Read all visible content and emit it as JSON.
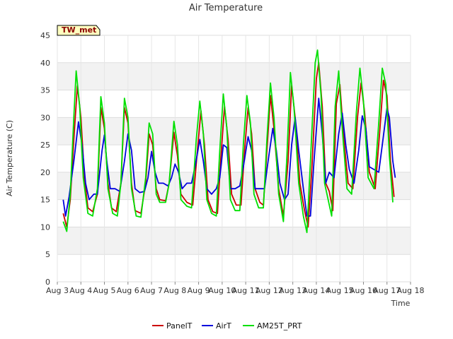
{
  "chart_data": {
    "type": "line",
    "title": "Air Temperature",
    "xlabel": "Time",
    "ylabel": "Air Temperature (C)",
    "badge": "TW_met",
    "ylim": [
      0,
      45
    ],
    "yticks": [
      0,
      5,
      10,
      15,
      20,
      25,
      30,
      35,
      40,
      45
    ],
    "xlim": [
      3,
      18
    ],
    "xtick_labels": [
      "Aug 3",
      "Aug 4",
      "Aug 5",
      "Aug 6",
      "Aug 7",
      "Aug 8",
      "Aug 9",
      "Aug 10",
      "Aug 11",
      "Aug 12",
      "Aug 13",
      "Aug 14",
      "Aug 15",
      "Aug 16",
      "Aug 17",
      "Aug 18"
    ],
    "grid": true,
    "legend_position": "bottom",
    "series": [
      {
        "name": "PanelT",
        "color": "#cc0000",
        "points": [
          [
            3.25,
            12.5
          ],
          [
            3.4,
            10.0
          ],
          [
            3.55,
            15.0
          ],
          [
            3.7,
            26.0
          ],
          [
            3.85,
            35.8
          ],
          [
            4.0,
            30.0
          ],
          [
            4.15,
            19.0
          ],
          [
            4.3,
            13.5
          ],
          [
            4.5,
            12.8
          ],
          [
            4.7,
            16.0
          ],
          [
            4.85,
            31.8
          ],
          [
            5.0,
            28.0
          ],
          [
            5.15,
            18.0
          ],
          [
            5.3,
            13.5
          ],
          [
            5.5,
            12.8
          ],
          [
            5.7,
            18.0
          ],
          [
            5.85,
            31.8
          ],
          [
            6.0,
            29.0
          ],
          [
            6.15,
            18.0
          ],
          [
            6.3,
            13.0
          ],
          [
            6.55,
            12.5
          ],
          [
            6.75,
            18.0
          ],
          [
            6.9,
            27.0
          ],
          [
            7.05,
            25.0
          ],
          [
            7.2,
            17.0
          ],
          [
            7.35,
            15.0
          ],
          [
            7.6,
            14.8
          ],
          [
            7.75,
            18.0
          ],
          [
            7.95,
            27.3
          ],
          [
            8.1,
            23.0
          ],
          [
            8.25,
            16.0
          ],
          [
            8.5,
            14.5
          ],
          [
            8.75,
            14.0
          ],
          [
            8.95,
            24.0
          ],
          [
            9.1,
            31.2
          ],
          [
            9.25,
            25.0
          ],
          [
            9.4,
            15.0
          ],
          [
            9.6,
            12.8
          ],
          [
            9.8,
            12.5
          ],
          [
            9.95,
            23.0
          ],
          [
            10.1,
            32.0
          ],
          [
            10.25,
            26.0
          ],
          [
            10.4,
            16.0
          ],
          [
            10.6,
            14.0
          ],
          [
            10.8,
            14.0
          ],
          [
            10.95,
            24.0
          ],
          [
            11.1,
            31.8
          ],
          [
            11.25,
            27.0
          ],
          [
            11.4,
            17.0
          ],
          [
            11.6,
            14.5
          ],
          [
            11.75,
            14.0
          ],
          [
            11.9,
            24.0
          ],
          [
            12.05,
            34.0
          ],
          [
            12.2,
            28.0
          ],
          [
            12.4,
            17.0
          ],
          [
            12.6,
            12.0
          ],
          [
            12.8,
            22.0
          ],
          [
            12.95,
            35.8
          ],
          [
            13.1,
            30.0
          ],
          [
            13.3,
            18.0
          ],
          [
            13.5,
            13.0
          ],
          [
            13.65,
            10.0
          ],
          [
            13.8,
            20.0
          ],
          [
            14.0,
            37.0
          ],
          [
            14.1,
            40.0
          ],
          [
            14.25,
            32.0
          ],
          [
            14.4,
            18.0
          ],
          [
            14.55,
            16.5
          ],
          [
            14.7,
            13.0
          ],
          [
            14.85,
            32.5
          ],
          [
            15.0,
            36.0
          ],
          [
            15.15,
            27.0
          ],
          [
            15.35,
            18.0
          ],
          [
            15.55,
            17.0
          ],
          [
            15.75,
            30.0
          ],
          [
            15.9,
            36.3
          ],
          [
            16.05,
            31.0
          ],
          [
            16.25,
            20.0
          ],
          [
            16.5,
            17.0
          ],
          [
            16.7,
            28.0
          ],
          [
            16.85,
            36.8
          ],
          [
            17.0,
            34.0
          ],
          [
            17.15,
            22.0
          ],
          [
            17.3,
            15.5
          ]
        ]
      },
      {
        "name": "AirT",
        "color": "#0000dd",
        "points": [
          [
            3.25,
            15.0
          ],
          [
            3.35,
            12.0
          ],
          [
            3.5,
            15.5
          ],
          [
            3.7,
            22.0
          ],
          [
            3.9,
            29.2
          ],
          [
            4.05,
            25.0
          ],
          [
            4.2,
            18.0
          ],
          [
            4.35,
            15.0
          ],
          [
            4.55,
            16.0
          ],
          [
            4.7,
            16.0
          ],
          [
            4.9,
            24.0
          ],
          [
            5.0,
            26.8
          ],
          [
            5.1,
            22.0
          ],
          [
            5.25,
            17.0
          ],
          [
            5.45,
            17.0
          ],
          [
            5.65,
            16.5
          ],
          [
            5.85,
            22.0
          ],
          [
            6.0,
            27.0
          ],
          [
            6.15,
            24.0
          ],
          [
            6.3,
            17.0
          ],
          [
            6.5,
            16.3
          ],
          [
            6.7,
            16.5
          ],
          [
            6.85,
            19.0
          ],
          [
            7.0,
            23.8
          ],
          [
            7.15,
            20.0
          ],
          [
            7.3,
            18.0
          ],
          [
            7.5,
            18.0
          ],
          [
            7.7,
            17.5
          ],
          [
            7.85,
            19.0
          ],
          [
            8.0,
            21.5
          ],
          [
            8.15,
            20.0
          ],
          [
            8.3,
            17.0
          ],
          [
            8.5,
            18.0
          ],
          [
            8.7,
            18.0
          ],
          [
            8.85,
            21.0
          ],
          [
            9.05,
            26.0
          ],
          [
            9.2,
            22.0
          ],
          [
            9.35,
            17.0
          ],
          [
            9.55,
            16.0
          ],
          [
            9.75,
            17.0
          ],
          [
            9.9,
            19.0
          ],
          [
            10.05,
            25.0
          ],
          [
            10.2,
            24.5
          ],
          [
            10.35,
            17.0
          ],
          [
            10.55,
            17.0
          ],
          [
            10.75,
            17.5
          ],
          [
            10.9,
            21.0
          ],
          [
            11.1,
            26.5
          ],
          [
            11.25,
            24.0
          ],
          [
            11.4,
            17.0
          ],
          [
            11.6,
            17.0
          ],
          [
            11.8,
            17.0
          ],
          [
            11.95,
            22.0
          ],
          [
            12.15,
            28.0
          ],
          [
            12.3,
            24.0
          ],
          [
            12.45,
            18.0
          ],
          [
            12.65,
            15.0
          ],
          [
            12.8,
            16.0
          ],
          [
            12.95,
            25.0
          ],
          [
            13.1,
            30.0
          ],
          [
            13.25,
            24.0
          ],
          [
            13.45,
            17.0
          ],
          [
            13.6,
            12.0
          ],
          [
            13.75,
            12.0
          ],
          [
            13.9,
            22.0
          ],
          [
            14.1,
            33.5
          ],
          [
            14.25,
            27.0
          ],
          [
            14.4,
            18.0
          ],
          [
            14.55,
            20.0
          ],
          [
            14.75,
            19.0
          ],
          [
            14.95,
            27.0
          ],
          [
            15.1,
            30.8
          ],
          [
            15.25,
            25.0
          ],
          [
            15.4,
            20.5
          ],
          [
            15.6,
            18.0
          ],
          [
            15.8,
            24.0
          ],
          [
            15.95,
            30.3
          ],
          [
            16.1,
            28.0
          ],
          [
            16.25,
            21.0
          ],
          [
            16.45,
            20.5
          ],
          [
            16.65,
            20.0
          ],
          [
            16.8,
            25.0
          ],
          [
            17.0,
            31.7
          ],
          [
            17.1,
            30.0
          ],
          [
            17.25,
            22.0
          ],
          [
            17.35,
            19.0
          ]
        ]
      },
      {
        "name": "AM25T_PRT",
        "color": "#00e000",
        "points": [
          [
            3.25,
            11.0
          ],
          [
            3.4,
            9.2
          ],
          [
            3.55,
            16.0
          ],
          [
            3.7,
            30.0
          ],
          [
            3.8,
            38.5
          ],
          [
            3.95,
            32.0
          ],
          [
            4.1,
            19.0
          ],
          [
            4.3,
            12.5
          ],
          [
            4.5,
            12.0
          ],
          [
            4.7,
            17.0
          ],
          [
            4.85,
            33.8
          ],
          [
            5.0,
            29.0
          ],
          [
            5.15,
            17.0
          ],
          [
            5.35,
            12.5
          ],
          [
            5.55,
            12.0
          ],
          [
            5.7,
            18.0
          ],
          [
            5.85,
            33.5
          ],
          [
            6.0,
            30.0
          ],
          [
            6.15,
            17.0
          ],
          [
            6.35,
            12.0
          ],
          [
            6.55,
            11.8
          ],
          [
            6.75,
            19.0
          ],
          [
            6.9,
            29.0
          ],
          [
            7.05,
            27.0
          ],
          [
            7.2,
            16.0
          ],
          [
            7.35,
            14.5
          ],
          [
            7.6,
            14.5
          ],
          [
            7.75,
            18.0
          ],
          [
            7.95,
            29.3
          ],
          [
            8.1,
            25.0
          ],
          [
            8.25,
            15.0
          ],
          [
            8.5,
            13.8
          ],
          [
            8.7,
            13.5
          ],
          [
            8.9,
            26.0
          ],
          [
            9.05,
            33.0
          ],
          [
            9.2,
            27.0
          ],
          [
            9.35,
            15.0
          ],
          [
            9.55,
            12.5
          ],
          [
            9.75,
            12.0
          ],
          [
            9.9,
            24.0
          ],
          [
            10.05,
            34.3
          ],
          [
            10.2,
            28.0
          ],
          [
            10.35,
            15.0
          ],
          [
            10.55,
            13.0
          ],
          [
            10.75,
            13.0
          ],
          [
            10.9,
            25.0
          ],
          [
            11.05,
            34.0
          ],
          [
            11.2,
            29.0
          ],
          [
            11.35,
            16.0
          ],
          [
            11.55,
            13.5
          ],
          [
            11.75,
            13.5
          ],
          [
            11.9,
            26.0
          ],
          [
            12.05,
            36.3
          ],
          [
            12.2,
            30.0
          ],
          [
            12.4,
            16.0
          ],
          [
            12.6,
            11.0
          ],
          [
            12.75,
            23.0
          ],
          [
            12.9,
            38.2
          ],
          [
            13.05,
            32.0
          ],
          [
            13.25,
            18.0
          ],
          [
            13.45,
            12.0
          ],
          [
            13.6,
            9.0
          ],
          [
            13.75,
            22.0
          ],
          [
            13.95,
            40.0
          ],
          [
            14.05,
            42.3
          ],
          [
            14.2,
            34.0
          ],
          [
            14.35,
            18.0
          ],
          [
            14.5,
            15.0
          ],
          [
            14.65,
            12.0
          ],
          [
            14.8,
            32.0
          ],
          [
            14.95,
            38.5
          ],
          [
            15.1,
            28.0
          ],
          [
            15.3,
            17.0
          ],
          [
            15.5,
            16.0
          ],
          [
            15.7,
            31.0
          ],
          [
            15.85,
            39.0
          ],
          [
            16.0,
            33.0
          ],
          [
            16.2,
            19.0
          ],
          [
            16.45,
            17.0
          ],
          [
            16.65,
            29.0
          ],
          [
            16.8,
            39.0
          ],
          [
            16.95,
            36.0
          ],
          [
            17.1,
            23.0
          ],
          [
            17.25,
            14.5
          ]
        ]
      }
    ]
  }
}
